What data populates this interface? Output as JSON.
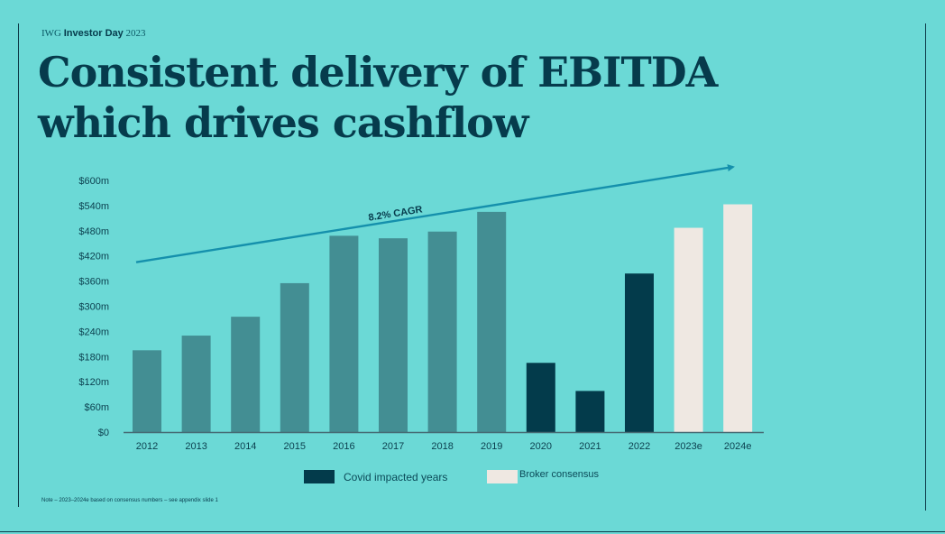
{
  "header": {
    "brand": "IWG",
    "event": "Investor Day",
    "year": "2023"
  },
  "title": {
    "line1": "Consistent delivery of EBITDA",
    "line2": "which drives cashflow"
  },
  "chart_data": {
    "type": "bar",
    "title": "Consistent delivery of EBITDA which drives cashflow",
    "categories": [
      "2012",
      "2013",
      "2014",
      "2015",
      "2016",
      "2017",
      "2018",
      "2019",
      "2020",
      "2021",
      "2022",
      "2023e",
      "2024e"
    ],
    "values": [
      195,
      230,
      275,
      355,
      468,
      462,
      478,
      525,
      165,
      98,
      378,
      487,
      543
    ],
    "groups": [
      "normal",
      "normal",
      "normal",
      "normal",
      "normal",
      "normal",
      "normal",
      "normal",
      "covid",
      "covid",
      "covid",
      "consensus",
      "consensus"
    ],
    "colors": {
      "normal": "#438e93",
      "covid": "#033b4b",
      "consensus": "#efe8e2",
      "trend": "#1590ac",
      "axis": "#456a73"
    },
    "ylim": [
      0,
      600
    ],
    "yticks": [
      0,
      60,
      120,
      180,
      240,
      300,
      360,
      420,
      480,
      540,
      600
    ],
    "ytick_labels": [
      "$0",
      "$60m",
      "$120m",
      "$180m",
      "$240m",
      "$300m",
      "$360m",
      "$420m",
      "$480m",
      "$540m",
      "$600m"
    ],
    "xlabel": "",
    "ylabel": "",
    "trend": {
      "label": "8.2% CAGR",
      "start_value": 405,
      "end_value": 632
    },
    "legend": [
      {
        "label": "Covid impacted years",
        "group": "covid"
      },
      {
        "label": "Broker consensus",
        "group": "consensus"
      }
    ]
  },
  "note": "Note – 2023–2024e based on consensus numbers – see appendix slide 1"
}
